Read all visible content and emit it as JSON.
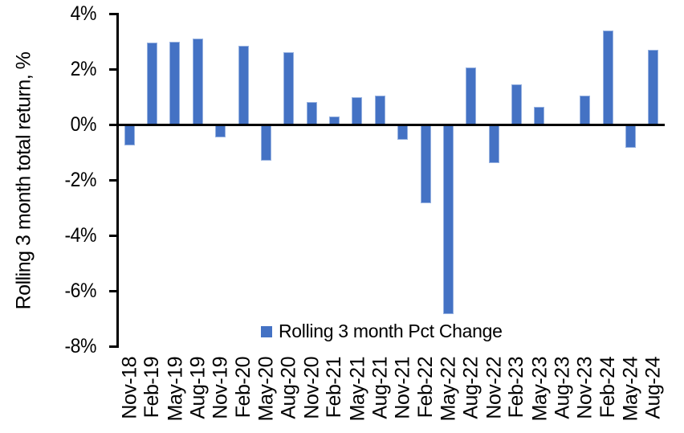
{
  "chart_data": {
    "type": "bar",
    "title": "",
    "xlabel": "",
    "ylabel": "Rolling 3 month total return, %",
    "categories": [
      "Nov-18",
      "Feb-19",
      "May-19",
      "Aug-19",
      "Nov-19",
      "Feb-20",
      "May-20",
      "Aug-20",
      "Nov-20",
      "Feb-21",
      "May-21",
      "Aug-21",
      "Nov-21",
      "Feb-22",
      "May-22",
      "Aug-22",
      "Nov-22",
      "Feb-23",
      "May-23",
      "Aug-23",
      "Nov-23",
      "Feb-24",
      "May-24",
      "Aug-24"
    ],
    "values": [
      -0.75,
      2.95,
      3.0,
      3.1,
      -0.45,
      2.85,
      -1.3,
      2.6,
      0.8,
      0.3,
      1.0,
      1.05,
      -0.55,
      -2.85,
      -6.85,
      2.05,
      -1.4,
      1.45,
      0.65,
      0.0,
      1.05,
      3.4,
      -0.85,
      2.7
    ],
    "ylim": [
      -8,
      4
    ],
    "yticks": [
      4,
      2,
      0,
      -2,
      -4,
      -6,
      -8
    ],
    "ytick_labels": [
      "4%",
      "2%",
      "0%",
      "-2%",
      "-4%",
      "-6%",
      "-8%"
    ],
    "grid": false,
    "legend": {
      "label": "Rolling 3 month Pct Change",
      "position": "bottom-center"
    },
    "colors": {
      "bar_fill": "#4472C4",
      "bar_edge": "#96b1e0",
      "axis": "#000000",
      "background": "#FFFFFF",
      "text": "#000000"
    }
  }
}
